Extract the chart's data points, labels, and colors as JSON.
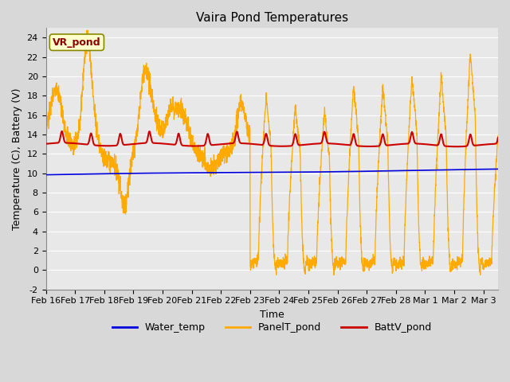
{
  "title": "Vaira Pond Temperatures",
  "xlabel": "Time",
  "ylabel": "Temperature (C), Battery (V)",
  "annotation": "VR_pond",
  "xlim": [
    0,
    15.5
  ],
  "ylim": [
    -2,
    25
  ],
  "yticks": [
    -2,
    0,
    2,
    4,
    6,
    8,
    10,
    12,
    14,
    16,
    18,
    20,
    22,
    24
  ],
  "xtick_labels": [
    "Feb 16",
    "Feb 17",
    "Feb 18",
    "Feb 19",
    "Feb 20",
    "Feb 21",
    "Feb 22",
    "Feb 23",
    "Feb 24",
    "Feb 25",
    "Feb 26",
    "Feb 27",
    "Feb 28",
    "Mar 1",
    "Mar 2",
    "Mar 3"
  ],
  "bg_color": "#e8e8e8",
  "grid_color": "#ffffff",
  "water_color": "#0000dd",
  "panel_color": "#ffaa00",
  "batt_color": "#cc0000",
  "legend_labels": [
    "Water_temp",
    "PanelT_pond",
    "BattV_pond"
  ],
  "title_fontsize": 11,
  "label_fontsize": 9,
  "tick_fontsize": 8,
  "fig_width": 6.4,
  "fig_height": 4.8,
  "dpi": 100
}
